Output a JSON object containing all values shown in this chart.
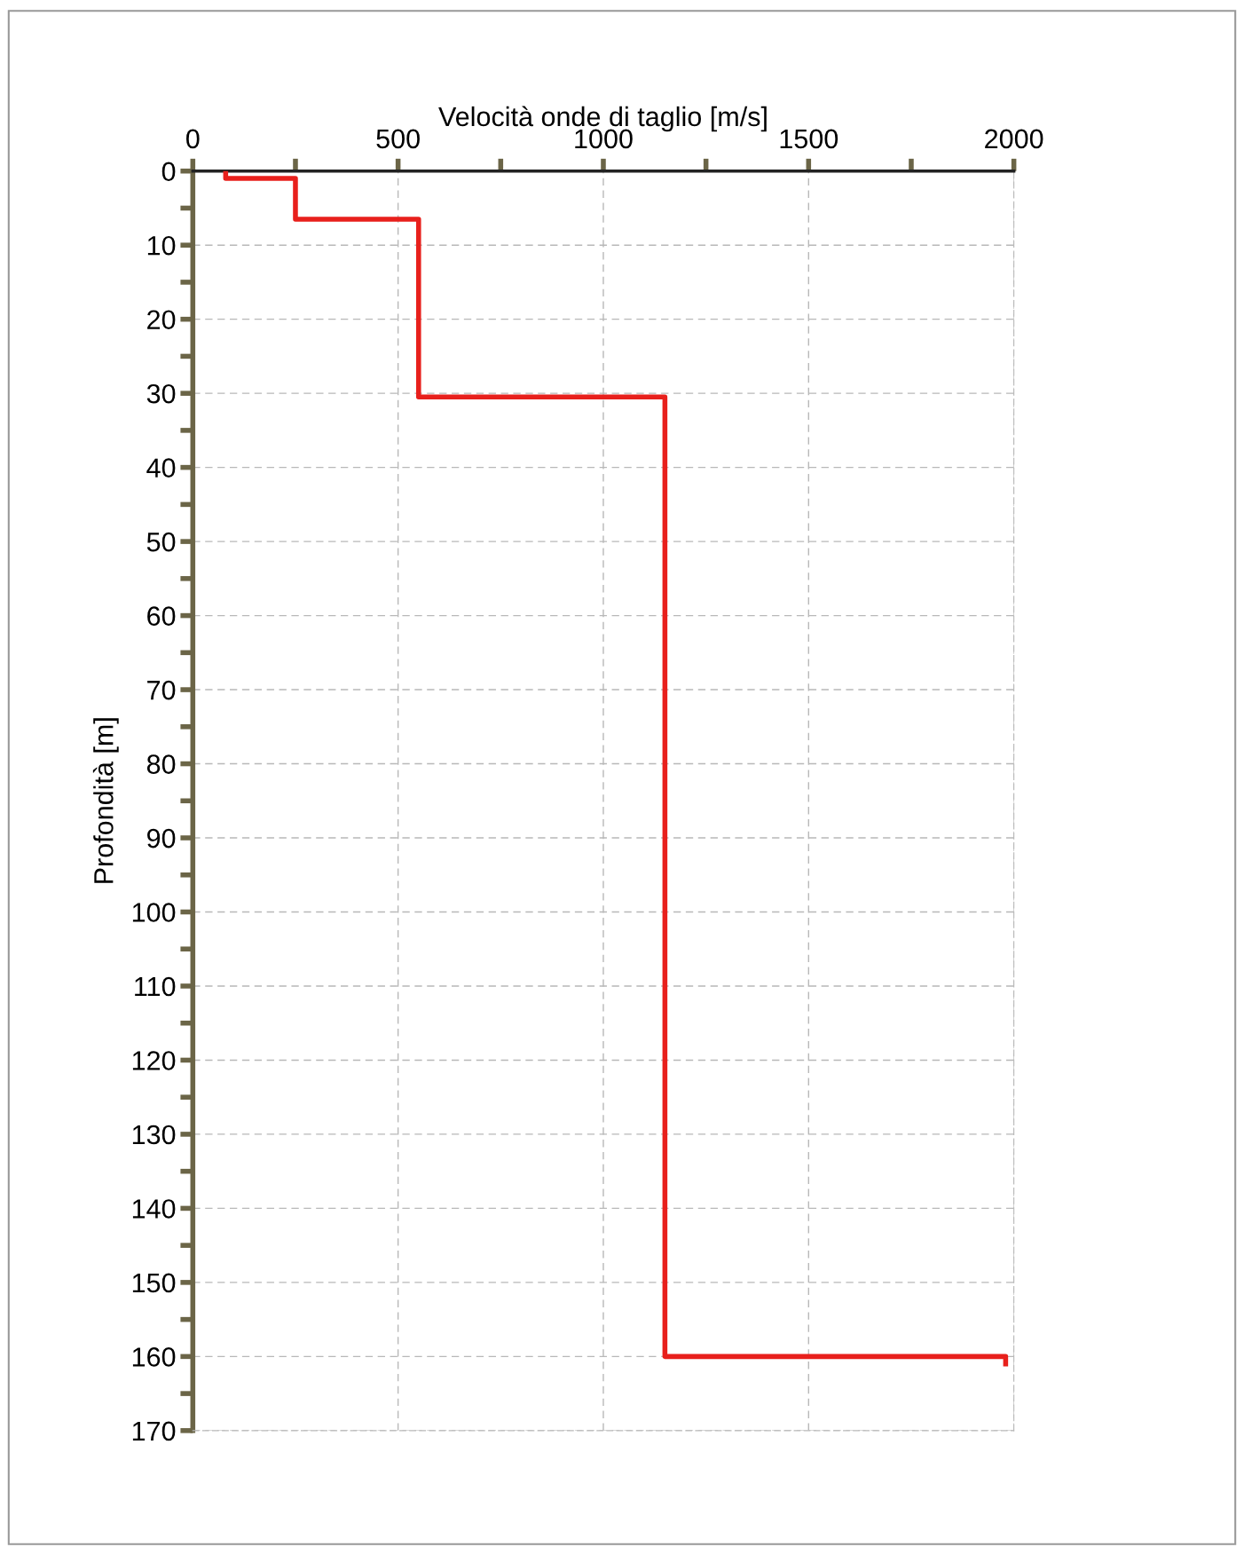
{
  "chart_data": {
    "type": "line",
    "xlabel": "Velocità onde di taglio [m/s]",
    "ylabel": "Profondità [m]",
    "series": [
      {
        "color": "#e8201c",
        "x": [
          80,
          80,
          250,
          250,
          550,
          550,
          1150,
          1150,
          1980,
          1980
        ],
        "values": [
          0,
          1,
          1,
          6.5,
          6.5,
          30.5,
          30.5,
          160,
          160,
          161
        ]
      }
    ],
    "xlim": [
      0,
      2000
    ],
    "ylim": [
      170,
      0
    ],
    "xticks": [
      0,
      {
        "value": 250,
        "label": null
      },
      500,
      {
        "value": 750,
        "label": null
      },
      1000,
      {
        "value": 1250,
        "label": null
      },
      1500,
      {
        "value": 1750,
        "label": null
      },
      2000
    ],
    "yticks": [
      0,
      {
        "value": 5,
        "label": null
      },
      10,
      {
        "value": 15,
        "label": null
      },
      20,
      {
        "value": 25,
        "label": null
      },
      30,
      {
        "value": 35,
        "label": null
      },
      40,
      {
        "value": 45,
        "label": null
      },
      50,
      {
        "value": 55,
        "label": null
      },
      60,
      {
        "value": 65,
        "label": null
      },
      70,
      {
        "value": 75,
        "label": null
      },
      80,
      {
        "value": 85,
        "label": null
      },
      90,
      {
        "value": 95,
        "label": null
      },
      100,
      {
        "value": 105,
        "label": null
      },
      110,
      {
        "value": 115,
        "label": null
      },
      120,
      {
        "value": 125,
        "label": null
      },
      130,
      {
        "value": 135,
        "label": null
      },
      140,
      {
        "value": 145,
        "label": null
      },
      150,
      {
        "value": 155,
        "label": null
      },
      160,
      {
        "value": 165,
        "label": null
      },
      170
    ],
    "grid": true,
    "marker": "none",
    "line_style": "solid"
  }
}
